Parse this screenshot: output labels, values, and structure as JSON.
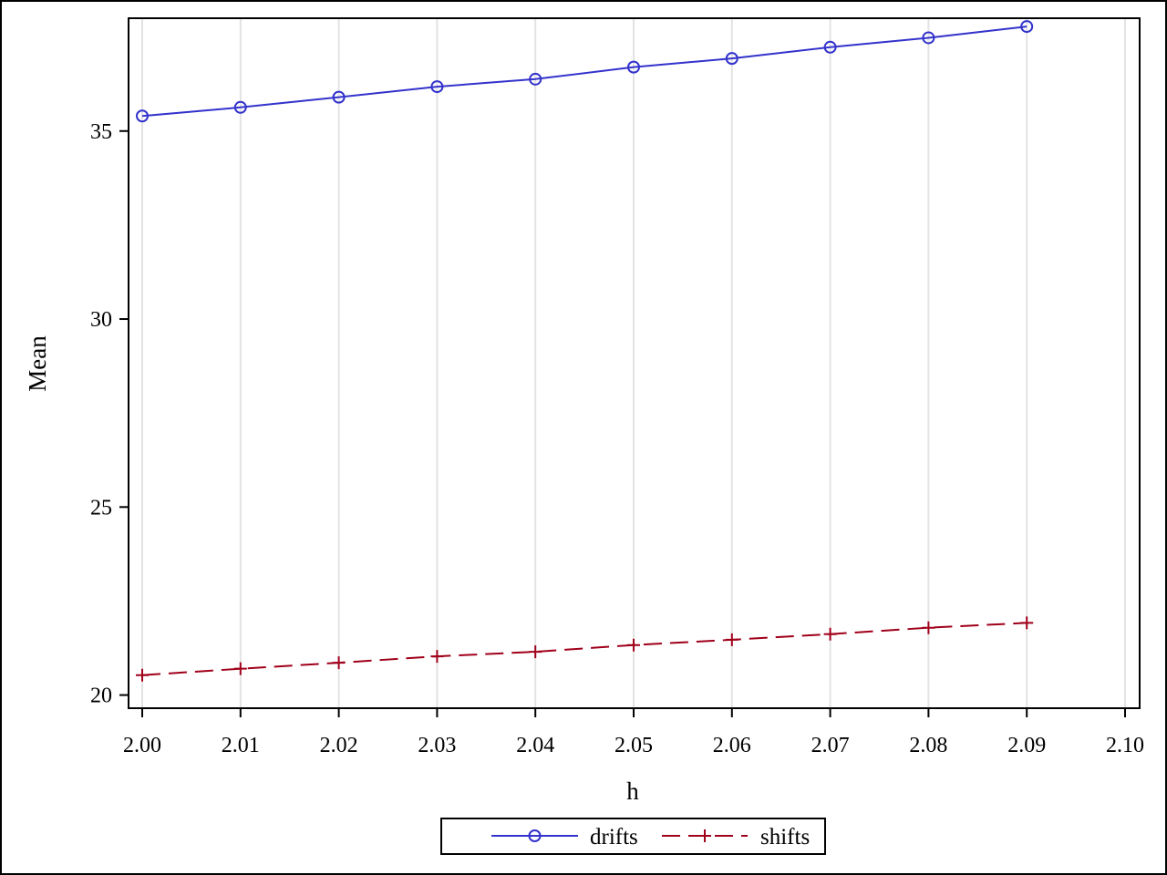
{
  "chart_data": {
    "type": "line",
    "title": "",
    "xlabel": "h",
    "ylabel": "Mean",
    "xlim": [
      2.0,
      2.1
    ],
    "ylim": [
      19.65,
      38.0
    ],
    "x_ticks": [
      2.0,
      2.01,
      2.02,
      2.03,
      2.04,
      2.05,
      2.06,
      2.07,
      2.08,
      2.09,
      2.1
    ],
    "x_tick_labels": [
      "2.00",
      "2.01",
      "2.02",
      "2.03",
      "2.04",
      "2.05",
      "2.06",
      "2.07",
      "2.08",
      "2.09",
      "2.10"
    ],
    "y_ticks": [
      20,
      25,
      30,
      35
    ],
    "y_tick_labels": [
      "20",
      "25",
      "30",
      "35"
    ],
    "grid": {
      "vertical": true,
      "horizontal": false
    },
    "legend": {
      "placement": "bottom-center",
      "frame": true
    },
    "x": [
      2.0,
      2.01,
      2.02,
      2.03,
      2.04,
      2.05,
      2.06,
      2.07,
      2.08,
      2.09
    ],
    "series": [
      {
        "name": "drifts",
        "color": "#3333cc",
        "line_style": "solid",
        "marker": "circle",
        "values": [
          35.4,
          35.63,
          35.9,
          36.18,
          36.38,
          36.7,
          36.93,
          37.23,
          37.48,
          37.78
        ]
      },
      {
        "name": "shifts",
        "color": "#a0001a",
        "line_style": "dashed",
        "marker": "plus",
        "values": [
          20.53,
          20.7,
          20.86,
          21.03,
          21.15,
          21.33,
          21.47,
          21.62,
          21.79,
          21.92
        ]
      }
    ]
  }
}
